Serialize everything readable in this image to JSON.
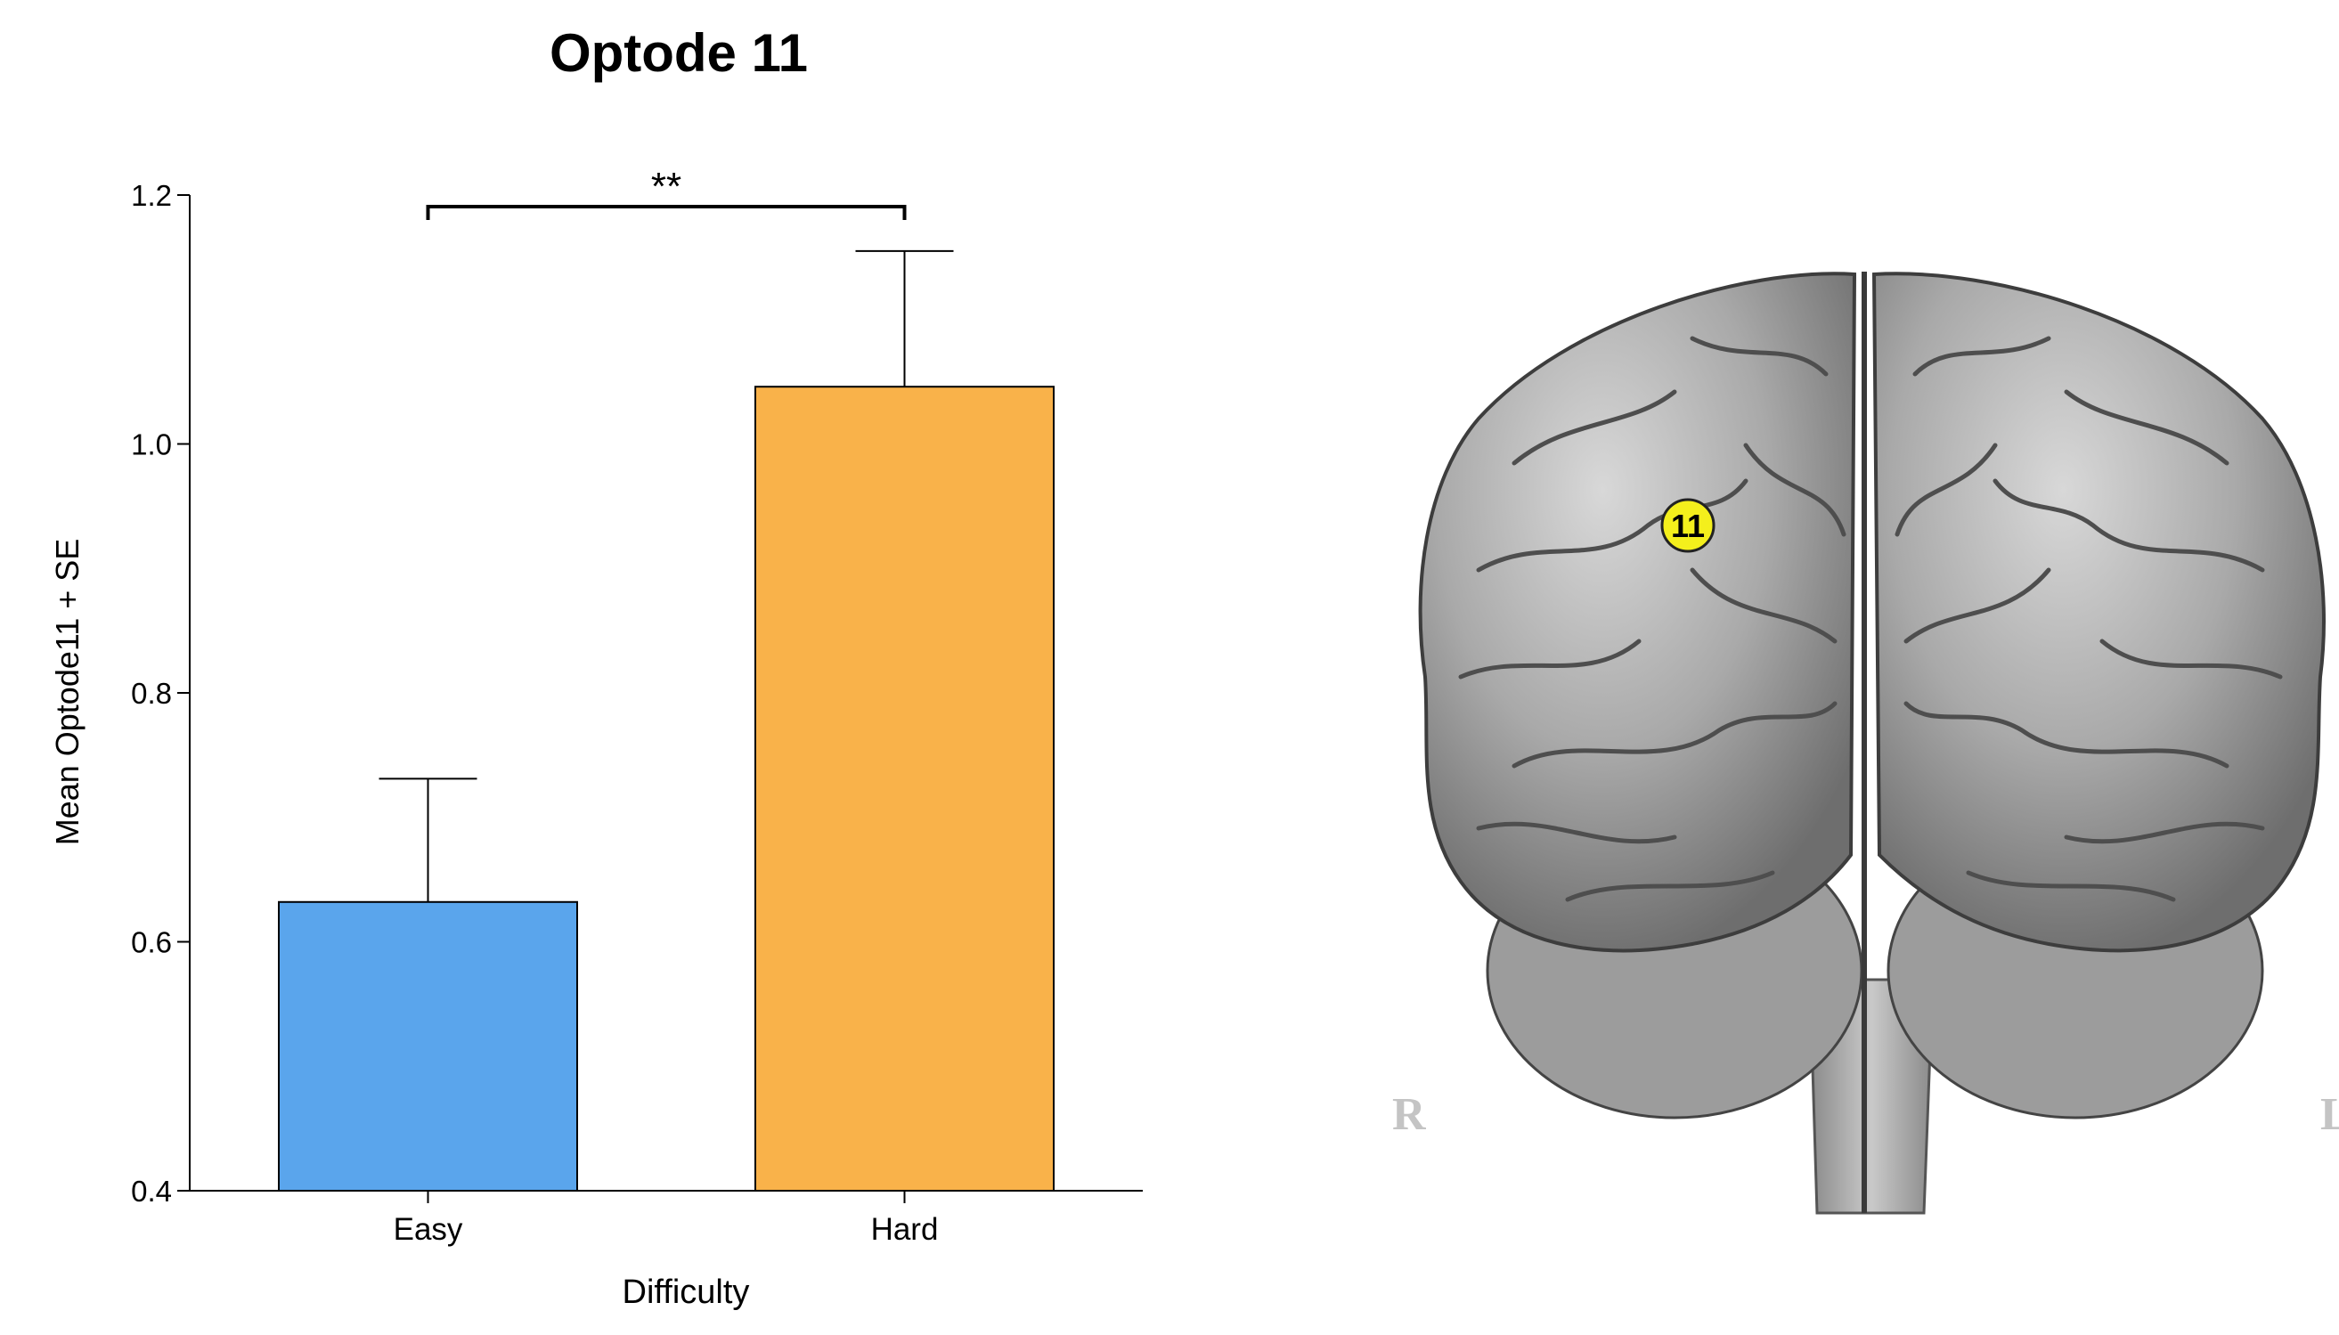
{
  "chart_data": {
    "type": "bar",
    "title": "Optode 11",
    "xlabel": "Difficulty",
    "ylabel": "Mean Optode11 + SE",
    "categories": [
      "Easy",
      "Hard"
    ],
    "values": [
      0.632,
      1.046
    ],
    "errors": [
      0.099,
      0.109
    ],
    "colors": [
      "#5aa5ec",
      "#f9b24a"
    ],
    "ylim": [
      0.4,
      1.2
    ],
    "yticks": [
      "0.4",
      "0.6",
      "0.8",
      "1.0",
      "1.2"
    ],
    "significance": {
      "between": [
        "Easy",
        "Hard"
      ],
      "label": "**"
    },
    "grid": false,
    "legend": "none"
  },
  "brain_figure": {
    "optode_label": "11",
    "optode_color": "#f4ef1c",
    "left_marker": "R",
    "right_marker": "L"
  }
}
